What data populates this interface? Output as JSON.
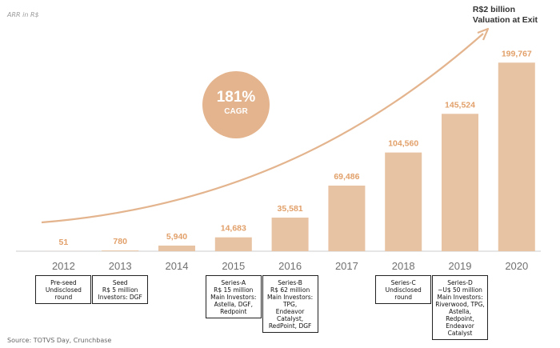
{
  "y_axis_label": "ARR in R$",
  "exit_annotation": [
    "R$2 billion",
    "Valuation at Exit"
  ],
  "cagr": {
    "value": "181%",
    "label": "CAGR"
  },
  "source": "Source: TOTVS Day, Crunchbase",
  "colors": {
    "bar": "#e8c3a3",
    "text": "#e2a06a",
    "axis": "#cccccc",
    "year": "#707070",
    "arrow": "#e3b48d"
  },
  "chart_data": {
    "type": "bar",
    "title": "",
    "xlabel": "",
    "ylabel": "ARR in R$",
    "categories": [
      "2012",
      "2013",
      "2014",
      "2015",
      "2016",
      "2017",
      "2018",
      "2019",
      "2020"
    ],
    "values": [
      51,
      780,
      5940,
      14683,
      35581,
      69486,
      104560,
      145524,
      199767
    ],
    "value_labels": [
      "51",
      "780",
      "5,940",
      "14,683",
      "35,581",
      "69,486",
      "104,560",
      "145,524",
      "199,767"
    ],
    "ylim": [
      0,
      200000
    ],
    "grid": false,
    "legend": "none"
  },
  "funding_rounds": [
    {
      "year_index": 0,
      "lines": [
        "Pre-seed",
        "Undisclosed",
        "round"
      ]
    },
    {
      "year_index": 1,
      "lines": [
        "Seed",
        "R$ 5 million",
        "Investors: DGF"
      ]
    },
    {
      "year_index": 3,
      "lines": [
        "Series-A",
        "R$ 15 million",
        "Main Investors:",
        "Astella, DGF,",
        "Redpoint"
      ]
    },
    {
      "year_index": 4,
      "lines": [
        "Series-B",
        "R$ 62 million",
        "Main Investors:",
        "TPG,",
        "Endeavor",
        "Catalyst,",
        "RedPoint, DGF"
      ]
    },
    {
      "year_index": 6,
      "lines": [
        "Series-C",
        "Undisclosed",
        "round"
      ]
    },
    {
      "year_index": 7,
      "lines": [
        "Series-D",
        "~U$ 50 million",
        "Main Investors:",
        "Riverwood, TPG,",
        "Astella,",
        "Redpoint,",
        "Endeavor",
        "Catalyst"
      ]
    }
  ]
}
